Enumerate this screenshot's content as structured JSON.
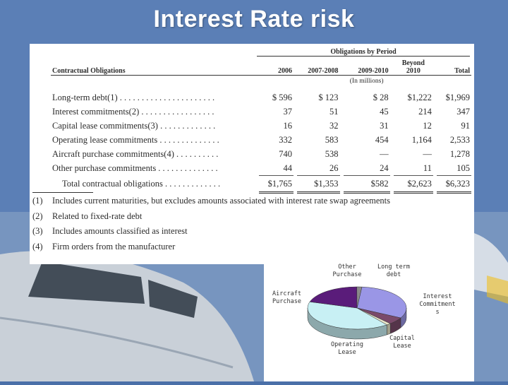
{
  "slide": {
    "title": "Interest Rate risk"
  },
  "table": {
    "header_group": "Obligations by Period",
    "first_col_header": "Contractual Obligations",
    "columns": [
      "2006",
      "2007-2008",
      "2009-2010",
      "Beyond 2010",
      "Total"
    ],
    "units": "(In millions)",
    "rows": [
      {
        "label": "Long-term debt(1) . . . . . . . . . . . . . . . . . . . . . .",
        "values": [
          "$  596",
          "$  123",
          "$  28",
          "$1,222",
          "$1,969"
        ]
      },
      {
        "label": "Interest commitments(2)  . . . . . . . . . . . . . . . . .",
        "values": [
          "37",
          "51",
          "45",
          "214",
          "347"
        ]
      },
      {
        "label": "Capital lease commitments(3)  . . . . . . . . . . . . .",
        "values": [
          "16",
          "32",
          "31",
          "12",
          "91"
        ]
      },
      {
        "label": "Operating lease commitments  . . . . . . . . . . . . . .",
        "values": [
          "332",
          "583",
          "454",
          "1,164",
          "2,533"
        ]
      },
      {
        "label": "Aircraft purchase commitments(4) . . . . . . . . . .",
        "values": [
          "740",
          "538",
          "—",
          "—",
          "1,278"
        ]
      },
      {
        "label": "Other purchase commitments  . . . . . . . . . . . . . .",
        "values": [
          "44",
          "26",
          "24",
          "11",
          "105"
        ]
      }
    ],
    "total": {
      "label": "Total contractual obligations . . . . . . . . . . . . .",
      "values": [
        "$1,765",
        "$1,353",
        "$582",
        "$2,623",
        "$6,323"
      ]
    }
  },
  "footnotes": [
    {
      "num": "(1)",
      "text": "Includes current maturities, but excludes amounts associated with interest rate swap agreements"
    },
    {
      "num": "(2)",
      "text": "Related to fixed-rate debt"
    },
    {
      "num": "(3)",
      "text": "Includes amounts classified as interest"
    },
    {
      "num": "(4)",
      "text": "Firm orders from the manufacturer"
    }
  ],
  "chart_data": {
    "type": "pie",
    "categories": [
      "Long-term debt",
      "Interest Commitments",
      "Capital Lease",
      "Operating Lease",
      "Aircraft Purchase",
      "Other Purchase"
    ],
    "values": [
      1969,
      347,
      91,
      2533,
      1278,
      105
    ],
    "labels": [
      {
        "key": "long_term_debt",
        "lines": [
          "Long term",
          "debt"
        ]
      },
      {
        "key": "interest",
        "lines": [
          "Interest",
          "Commitment",
          "s"
        ]
      },
      {
        "key": "capital_lease",
        "lines": [
          "Capital",
          "Lease"
        ]
      },
      {
        "key": "operating_lease",
        "lines": [
          "Operating",
          "Lease"
        ]
      },
      {
        "key": "aircraft",
        "lines": [
          "Aircraft",
          "Purchase"
        ]
      },
      {
        "key": "other",
        "lines": [
          "Other",
          "Purchase"
        ]
      }
    ],
    "colors": [
      "#9a96e6",
      "#7a4a6a",
      "#e8e4c8",
      "#c8f0f4",
      "#5a1c7a",
      "#8a8a8a"
    ]
  }
}
